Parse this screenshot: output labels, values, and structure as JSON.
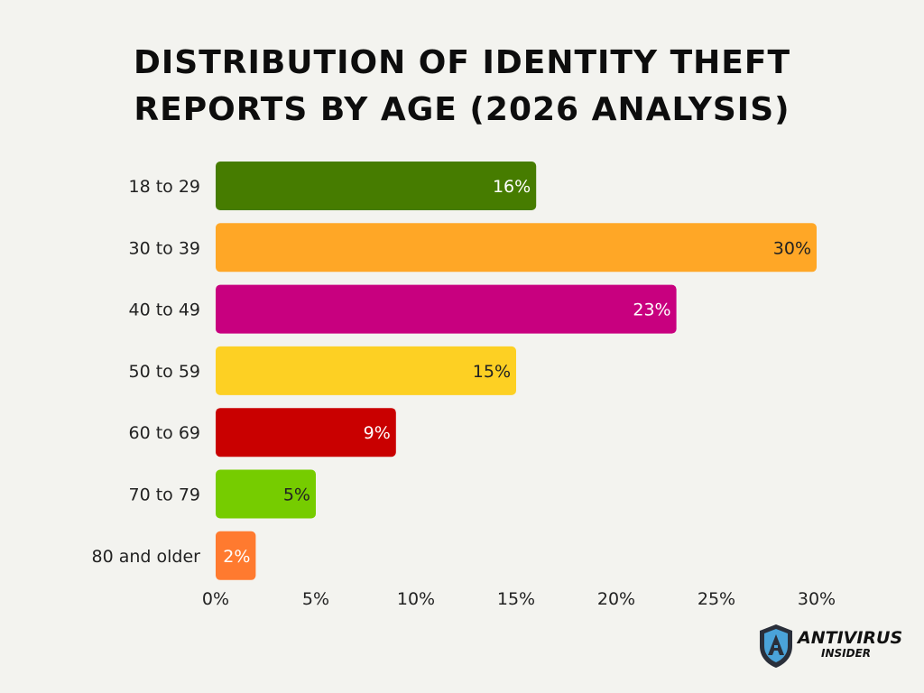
{
  "chart_data": {
    "type": "bar",
    "orientation": "horizontal",
    "title_lines": [
      "Distribution of Identity Theft",
      "Reports by Age (2026 Analysis)"
    ],
    "categories": [
      "18 to 29",
      "30 to 39",
      "40 to 49",
      "50 to 59",
      "60 to 69",
      "70 to 79",
      "80 and older"
    ],
    "values": [
      16,
      30,
      23,
      15,
      9,
      5,
      2
    ],
    "value_labels": [
      "16%",
      "30%",
      "23%",
      "15%",
      "9%",
      "5%",
      "2%"
    ],
    "bar_colors": [
      "#467c00",
      "#ffa726",
      "#c8007f",
      "#fdd023",
      "#c90000",
      "#76cc00",
      "#ff7a2f"
    ],
    "value_label_colors": [
      "#ffffff",
      "#222222",
      "#ffffff",
      "#222222",
      "#ffffff",
      "#222222",
      "#ffffff"
    ],
    "xlim": [
      0,
      30
    ],
    "xticks": [
      0,
      5,
      10,
      15,
      20,
      25,
      30
    ],
    "xtick_labels": [
      "0%",
      "5%",
      "10%",
      "15%",
      "20%",
      "25%",
      "30%"
    ],
    "grid": false,
    "legend": "none"
  },
  "logo": {
    "line1": "ANTIVIRUS",
    "line2": "INSIDER",
    "shield_color": "#2a2f3a",
    "accent_color": "#4aa3d9"
  }
}
